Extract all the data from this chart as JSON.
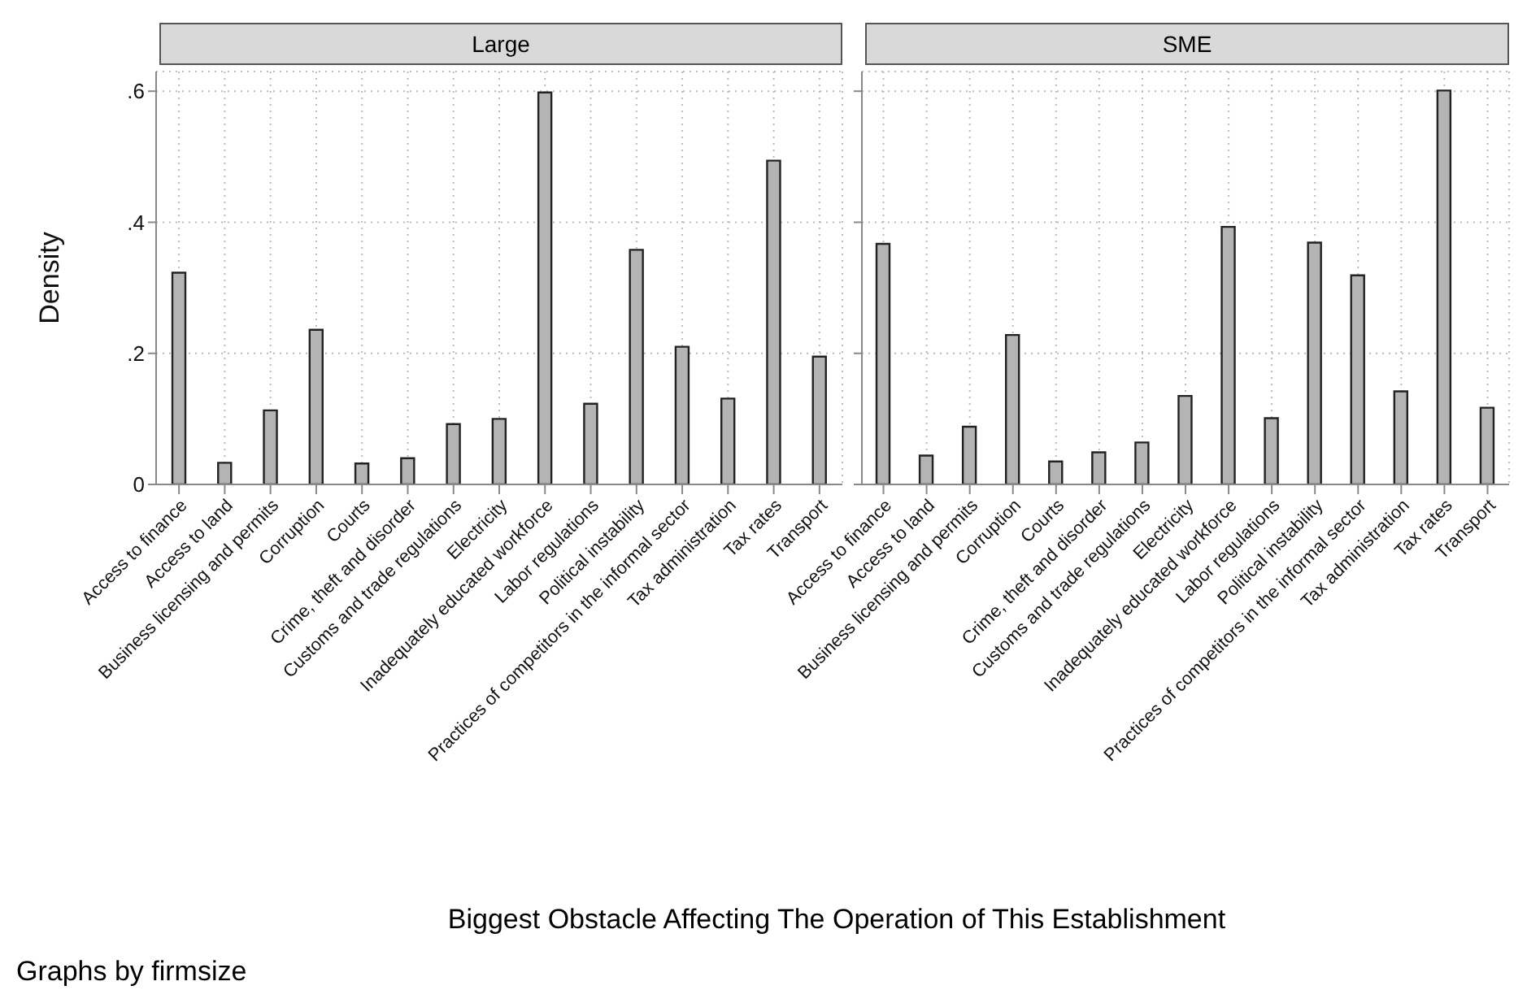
{
  "chart_data": [
    {
      "type": "bar",
      "title": "Large",
      "ylabel": "Density",
      "xlabel": "Biggest Obstacle Affecting The Operation of This Establishment",
      "annotations": [
        "Graphs by firmsize"
      ],
      "categories": [
        "Access to finance",
        "Access to land",
        "Business licensing and permits",
        "Corruption",
        "Courts",
        "Crime, theft and disorder",
        "Customs and trade regulations",
        "Electricity",
        "Inadequately educated workforce",
        "Labor regulations",
        "Political instability",
        "Practices of competitors in the informal sector",
        "Tax administration",
        "Tax rates",
        "Transport"
      ],
      "values": [
        0.323,
        0.033,
        0.113,
        0.236,
        0.032,
        0.04,
        0.092,
        0.1,
        0.598,
        0.123,
        0.358,
        0.21,
        0.131,
        0.494,
        0.195
      ],
      "color": "#b4b4b4",
      "ylim": [
        0,
        0.63
      ],
      "yticks": [
        {
          "value": 0,
          "label": "0"
        },
        {
          "value": 0.2,
          "label": ".2"
        },
        {
          "value": 0.4,
          "label": ".4"
        },
        {
          "value": 0.6,
          "label": ".6"
        }
      ],
      "grid": true
    },
    {
      "type": "bar",
      "title": "SME",
      "categories": [
        "Access to finance",
        "Access to land",
        "Business licensing and permits",
        "Corruption",
        "Courts",
        "Crime, theft and disorder",
        "Customs and trade regulations",
        "Electricity",
        "Inadequately educated workforce",
        "Labor regulations",
        "Political instability",
        "Practices of competitors in the informal sector",
        "Tax administration",
        "Tax rates",
        "Transport"
      ],
      "values": [
        0.367,
        0.044,
        0.088,
        0.228,
        0.035,
        0.049,
        0.064,
        0.135,
        0.393,
        0.101,
        0.369,
        0.319,
        0.142,
        0.601,
        0.117
      ],
      "color": "#b4b4b4",
      "ylim": [
        0,
        0.63
      ],
      "yticks": [
        0,
        0.2,
        0.4,
        0.6
      ],
      "grid": true,
      "tick_labels": "x"
    }
  ]
}
